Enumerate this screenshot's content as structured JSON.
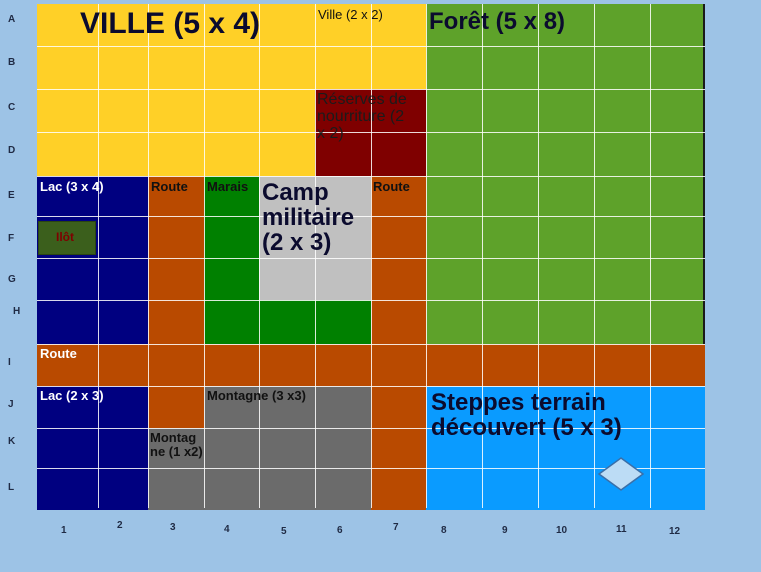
{
  "rows": [
    "A",
    "B",
    "C",
    "D",
    "E",
    "F",
    "G",
    "H",
    "I",
    "J",
    "K",
    "L"
  ],
  "cols": [
    "1",
    "2",
    "3",
    "4",
    "5",
    "6",
    "7",
    "8",
    "9",
    "10",
    "11",
    "12"
  ],
  "labels": {
    "ville": "VILLE (5 x 4)",
    "ville_small": "Ville (2 x 2)",
    "foret": "Forêt (5 x 8)",
    "reserves": "Réserves de nourriture (2 x 2)",
    "lac1": "Lac (3 x 4)",
    "ilot": "Ilôt",
    "route1": "Route",
    "marais": "Marais",
    "camp": "Camp militaire (2 x 3)",
    "route2": "Route",
    "route_h": "Route",
    "lac2": "Lac (2 x 3)",
    "montagne_big": "Montagne (3 x3)",
    "montagne_small": "Montagne (1 x2)",
    "steppes": "Steppes terrain découvert (5 x 3)"
  },
  "colors": {
    "background": "#9dc3e6",
    "ville": "#ffd027",
    "foret": "#5ea22a",
    "reserves": "#7f0000",
    "lac": "#000080",
    "route": "#b94a00",
    "marais": "#008000",
    "camp": "#c0c0c0",
    "montagne": "#6b6b6b",
    "steppes": "#0a9bff",
    "ilot": "#3b5f1c"
  },
  "markers": [
    "diamond-marker"
  ]
}
